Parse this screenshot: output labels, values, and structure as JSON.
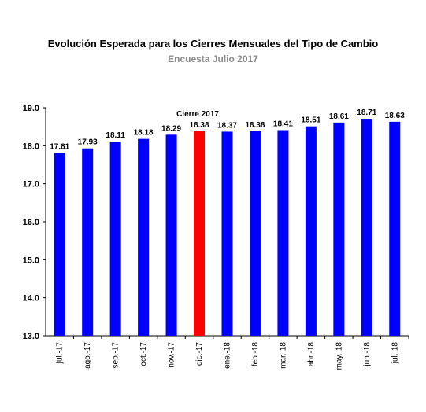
{
  "chart_data": {
    "type": "bar",
    "title": "Evolución Esperada para los Cierres Mensuales del Tipo de Cambio",
    "subtitle": "Encuesta Julio 2017",
    "xlabel": "",
    "ylabel": "",
    "ylim": [
      13.0,
      19.0
    ],
    "yticks": [
      "13.0",
      "14.0",
      "15.0",
      "16.0",
      "17.0",
      "18.0",
      "19.0"
    ],
    "grid": false,
    "categories": [
      "jul.-17",
      "ago.-17",
      "sep.-17",
      "oct.-17",
      "nov.-17",
      "dic.-17",
      "ene.-18",
      "feb.-18",
      "mar.-18",
      "abr.-18",
      "may.-18",
      "jun.-18",
      "jul.-18"
    ],
    "values": [
      17.81,
      17.93,
      18.11,
      18.18,
      18.29,
      18.38,
      18.37,
      18.38,
      18.41,
      18.51,
      18.61,
      18.71,
      18.63
    ],
    "value_labels": [
      "17.81",
      "17.93",
      "18.11",
      "18.18",
      "18.29",
      "18.38",
      "18.37",
      "18.38",
      "18.41",
      "18.51",
      "18.61",
      "18.71",
      "18.63"
    ],
    "bar_color": "#0000ff",
    "highlight_color": "#ff0000",
    "highlight_index": 5,
    "annotation": {
      "text": "Cierre 2017",
      "category": "dic.-17"
    }
  }
}
